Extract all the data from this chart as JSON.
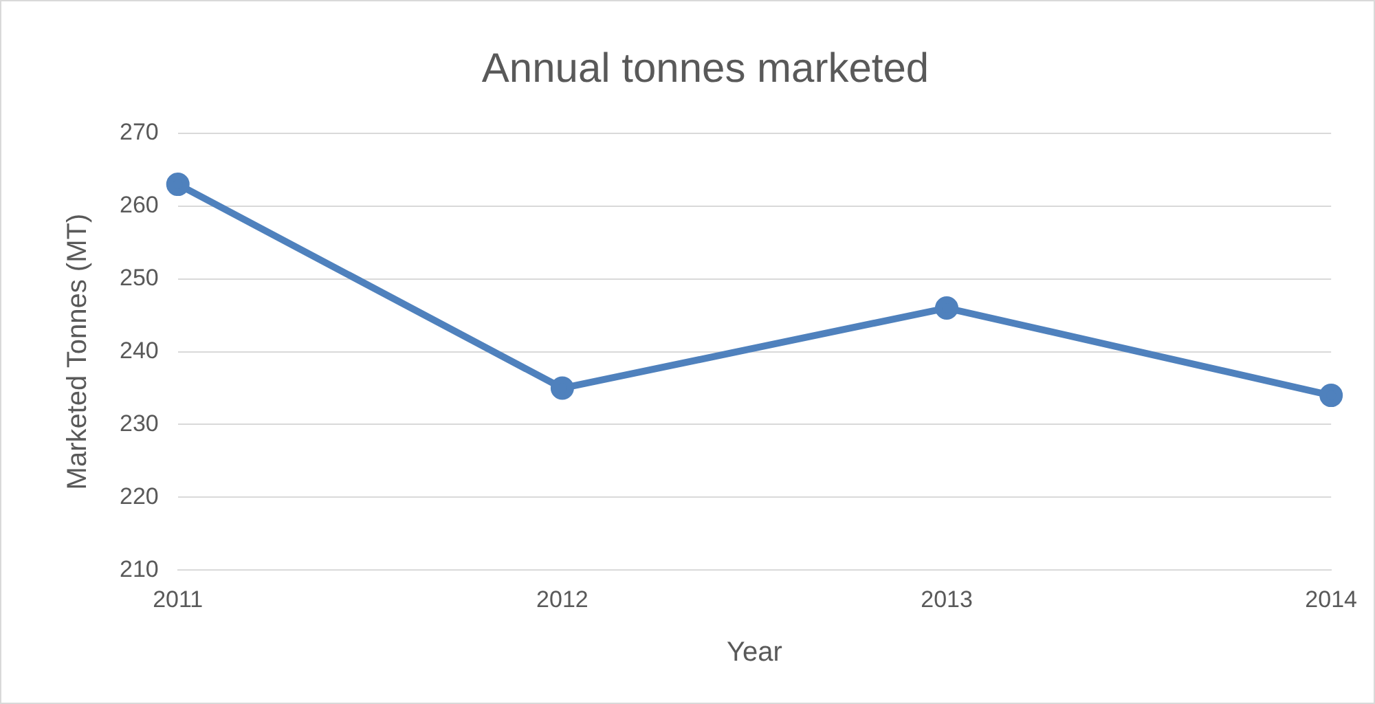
{
  "chart_data": {
    "type": "line",
    "title": "Annual tonnes marketed",
    "xlabel": "Year",
    "ylabel": "Marketed Tonnes (MT)",
    "categories": [
      "2011",
      "2012",
      "2013",
      "2014"
    ],
    "series": [
      {
        "color": "#4f81bd",
        "values": [
          263,
          235,
          246,
          234
        ]
      }
    ],
    "ylim": [
      210,
      270
    ],
    "yticks": [
      210,
      220,
      230,
      240,
      250,
      260,
      270
    ],
    "grid": "y",
    "legend": false,
    "marker": "circle",
    "line_style": "solid"
  }
}
